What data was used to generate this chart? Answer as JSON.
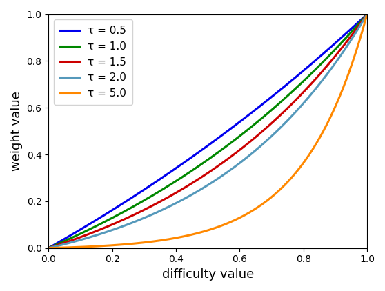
{
  "title": "",
  "xlabel": "difficulty value",
  "ylabel": "weight value",
  "xlim": [
    0,
    1
  ],
  "ylim": [
    0,
    1
  ],
  "series": [
    {
      "tau": 0.5,
      "label": "τ = 0.5",
      "color": "#0000ee"
    },
    {
      "tau": 1.0,
      "label": "τ = 1.0",
      "color": "#008800"
    },
    {
      "tau": 1.5,
      "label": "τ = 1.5",
      "color": "#cc0000"
    },
    {
      "tau": 2.0,
      "label": "τ = 2.0",
      "color": "#5599bb"
    },
    {
      "tau": 5.0,
      "label": "τ = 5.0",
      "color": "#ff8800"
    }
  ],
  "legend_loc": "upper left",
  "linewidth": 2.2,
  "figsize": [
    5.58,
    4.22
  ],
  "dpi": 100
}
